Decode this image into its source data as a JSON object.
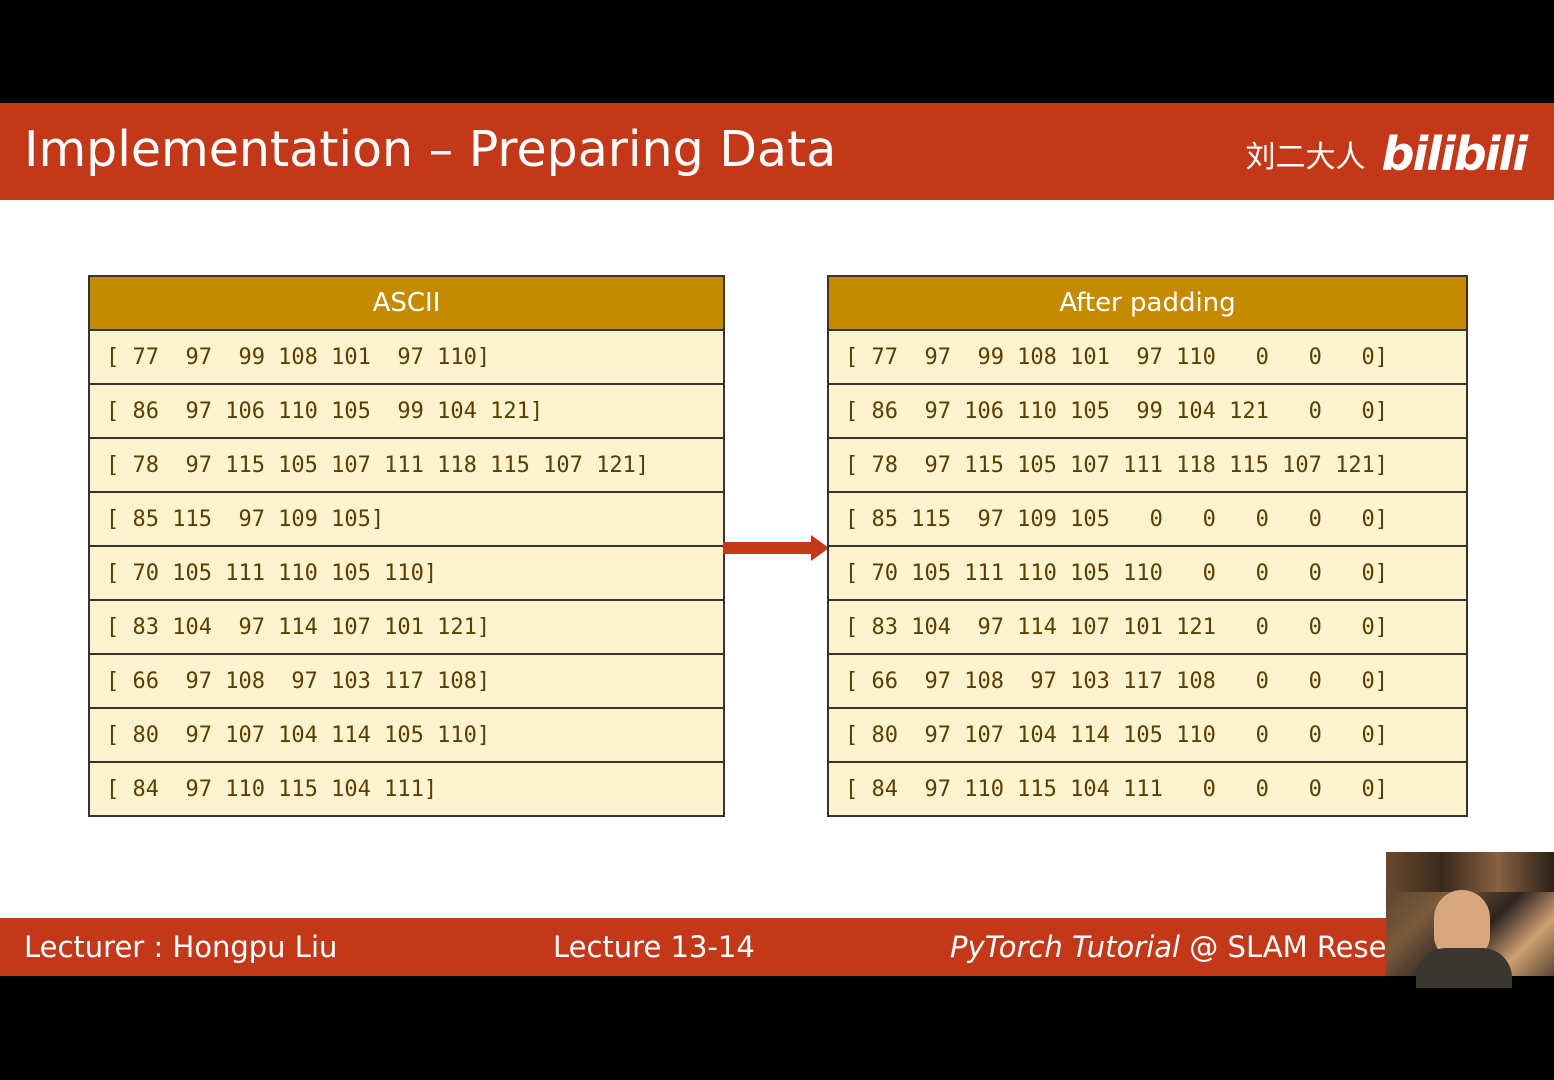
{
  "header": {
    "title": "Implementation – Preparing Data",
    "brand_text": "刘二大人",
    "brand_logo": "bilibili"
  },
  "tables": {
    "ascii": {
      "header": "ASCII",
      "rows": [
        "[ 77  97  99 108 101  97 110]",
        "[ 86  97 106 110 105  99 104 121]",
        "[ 78  97 115 105 107 111 118 115 107 121]",
        "[ 85 115  97 109 105]",
        "[ 70 105 111 110 105 110]",
        "[ 83 104  97 114 107 101 121]",
        "[ 66  97 108  97 103 117 108]",
        "[ 80  97 107 104 114 105 110]",
        "[ 84  97 110 115 104 111]"
      ]
    },
    "padded": {
      "header": "After padding",
      "rows": [
        "[ 77  97  99 108 101  97 110   0   0   0]",
        "[ 86  97 106 110 105  99 104 121   0   0]",
        "[ 78  97 115 105 107 111 118 115 107 121]",
        "[ 85 115  97 109 105   0   0   0   0   0]",
        "[ 70 105 111 110 105 110   0   0   0   0]",
        "[ 83 104  97 114 107 101 121   0   0   0]",
        "[ 66  97 108  97 103 117 108   0   0   0]",
        "[ 80  97 107 104 114 105 110   0   0   0]",
        "[ 84  97 110 115 104 111   0   0   0   0]"
      ]
    }
  },
  "footer": {
    "lecturer": "Lecturer : Hongpu Liu",
    "lecture": "Lecture 13-14",
    "course_italic": "PyTorch Tutorial",
    "course_rest": " @ SLAM Resea"
  },
  "colors": {
    "accent": "#c4381a",
    "table_header": "#c48b00",
    "row_fill": "#fdf3cf",
    "row_text": "#5a3e00"
  }
}
